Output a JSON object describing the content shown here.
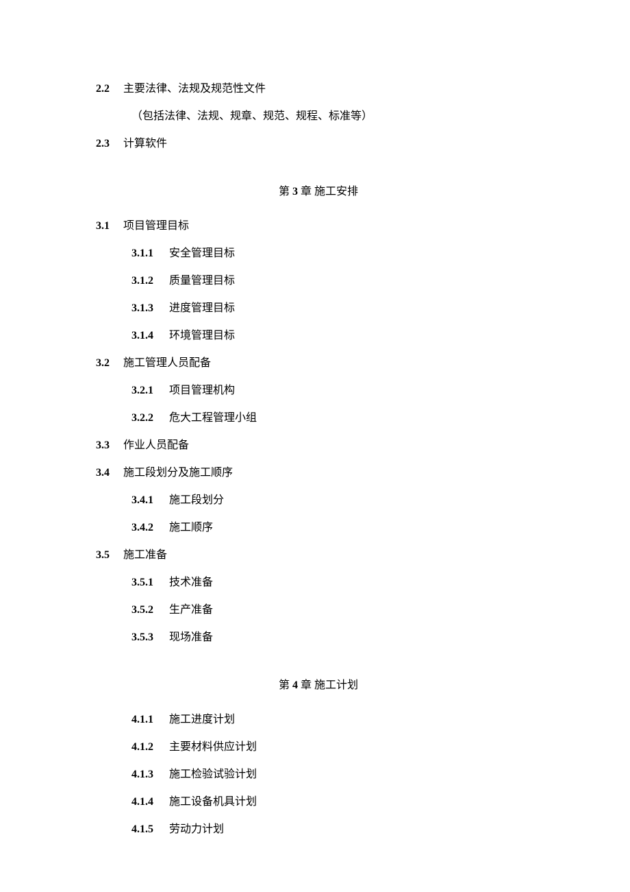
{
  "items": [
    {
      "type": "l1",
      "num": "2.2",
      "text": "主要法律、法规及规范性文件"
    },
    {
      "type": "note",
      "text": "（包括法律、法规、规章、规范、规程、标准等）"
    },
    {
      "type": "l1",
      "num": "2.3",
      "text": "计算软件"
    },
    {
      "type": "chapter",
      "prefix": "第",
      "num": " 3 ",
      "suffix": "章 施工安排"
    },
    {
      "type": "l1",
      "num": "3.1",
      "text": "项目管理目标"
    },
    {
      "type": "l2",
      "num": "3.1.1",
      "text": "安全管理目标"
    },
    {
      "type": "l2",
      "num": "3.1.2",
      "text": "质量管理目标"
    },
    {
      "type": "l2",
      "num": "3.1.3",
      "text": "进度管理目标"
    },
    {
      "type": "l2",
      "num": "3.1.4",
      "text": "环境管理目标"
    },
    {
      "type": "l1",
      "num": "3.2",
      "text": "施工管理人员配备"
    },
    {
      "type": "l2",
      "num": "3.2.1",
      "text": "项目管理机构"
    },
    {
      "type": "l2",
      "num": "3.2.2",
      "text": "危大工程管理小组"
    },
    {
      "type": "l1",
      "num": "3.3",
      "text": "作业人员配备"
    },
    {
      "type": "l1",
      "num": "3.4",
      "text": "施工段划分及施工顺序"
    },
    {
      "type": "l2",
      "num": "3.4.1",
      "text": "施工段划分"
    },
    {
      "type": "l2",
      "num": "3.4.2",
      "text": "施工顺序"
    },
    {
      "type": "l1",
      "num": "3.5",
      "text": "施工准备"
    },
    {
      "type": "l2",
      "num": "3.5.1",
      "text": "技术准备"
    },
    {
      "type": "l2",
      "num": "3.5.2",
      "text": "生产准备"
    },
    {
      "type": "l2",
      "num": "3.5.3",
      "text": "现场准备"
    },
    {
      "type": "chapter",
      "prefix": "第",
      "num": " 4 ",
      "suffix": "章 施工计划"
    },
    {
      "type": "l2",
      "num": "4.1.1",
      "text": "施工进度计划"
    },
    {
      "type": "l2",
      "num": "4.1.2",
      "text": "主要材料供应计划"
    },
    {
      "type": "l2",
      "num": "4.1.3",
      "text": "施工检验试验计划"
    },
    {
      "type": "l2",
      "num": "4.1.4",
      "text": "施工设备机具计划"
    },
    {
      "type": "l2",
      "num": "4.1.5",
      "text": "劳动力计划"
    }
  ]
}
